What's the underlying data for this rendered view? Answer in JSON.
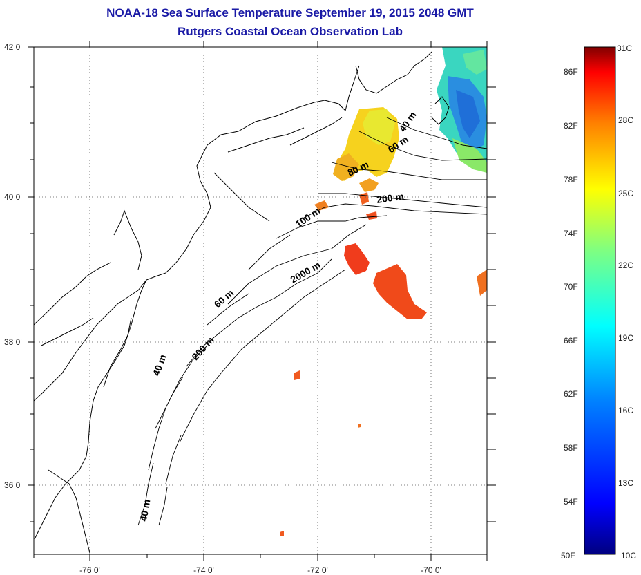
{
  "title": "NOAA-18 Sea Surface Temperature September 19, 2015 2048 GMT",
  "subtitle": "Rutgers Coastal Ocean Observation Lab",
  "map": {
    "lat_labels": [
      "42 0'",
      "40 0'",
      "38 0'",
      "36 0'"
    ],
    "lon_labels": [
      "-76 0'",
      "-74 0'",
      "-72 0'",
      "-70 0'"
    ],
    "contour_labels": [
      "40 m",
      "60 m",
      "80 m",
      "200 m",
      "100 m",
      "2000 m",
      "60 m",
      "200 m",
      "40 m",
      "40 m"
    ]
  },
  "colorbar": {
    "fahrenheit_labels": [
      "86F",
      "82F",
      "78F",
      "74F",
      "70F",
      "66F",
      "62F",
      "58F",
      "54F",
      "50F"
    ],
    "celsius_labels": [
      "31C",
      "28C",
      "25C",
      "22C",
      "19C",
      "16C",
      "13C",
      "10C"
    ],
    "colors": [
      "#800000",
      "#ff0000",
      "#ff8000",
      "#ffff00",
      "#80ff80",
      "#00ffff",
      "#0080ff",
      "#0000ff",
      "#000080"
    ]
  }
}
